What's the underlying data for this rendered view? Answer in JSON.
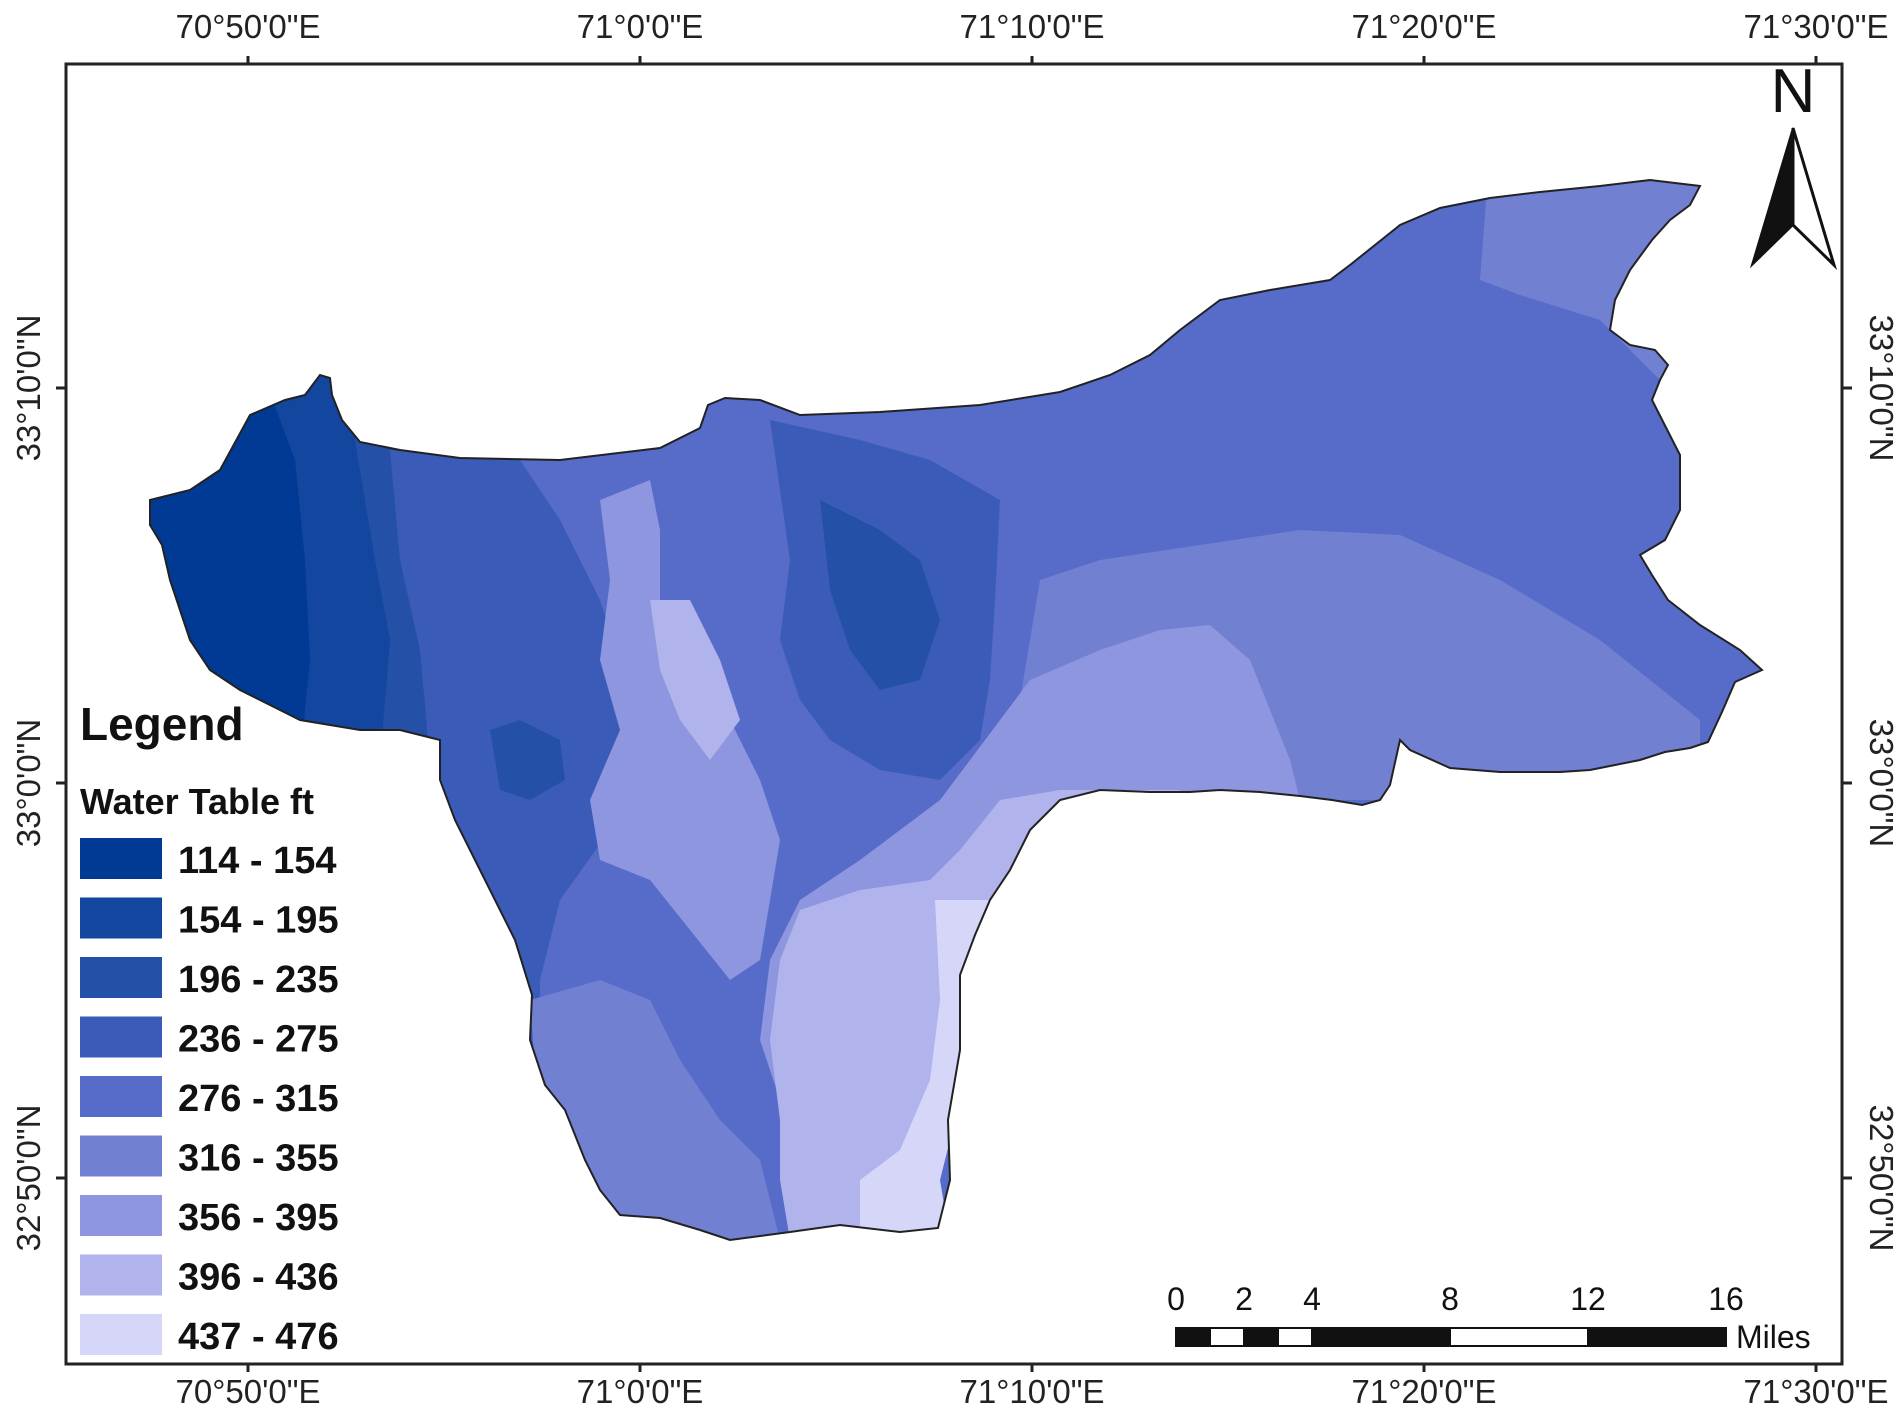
{
  "map": {
    "longitude_labels": [
      "70°50'0\"E",
      "71°0'0\"E",
      "71°10'0\"E",
      "71°20'0\"E",
      "71°30'0\"E"
    ],
    "latitude_labels": [
      "33°10'0\"N",
      "33°0'0\"N",
      "32°50'0\"N"
    ]
  },
  "north_arrow": {
    "label": "N"
  },
  "legend": {
    "title": "Legend",
    "subtitle": "Water Table ft",
    "classes": [
      {
        "label": "114 - 154",
        "color": "#003a94"
      },
      {
        "label": "154 - 195",
        "color": "#12469f"
      },
      {
        "label": "196 - 235",
        "color": "#2550a8"
      },
      {
        "label": "236 - 275",
        "color": "#3a5cb8"
      },
      {
        "label": "276 - 315",
        "color": "#566cc8"
      },
      {
        "label": "316 - 355",
        "color": "#7280d2"
      },
      {
        "label": "356 - 395",
        "color": "#8d96de"
      },
      {
        "label": "396 - 436",
        "color": "#b0b3ec"
      },
      {
        "label": "437 - 476",
        "color": "#d5d6f8"
      }
    ]
  },
  "scale_bar": {
    "ticks": [
      "0",
      "2",
      "4",
      "8",
      "12",
      "16"
    ],
    "unit": "Miles"
  }
}
